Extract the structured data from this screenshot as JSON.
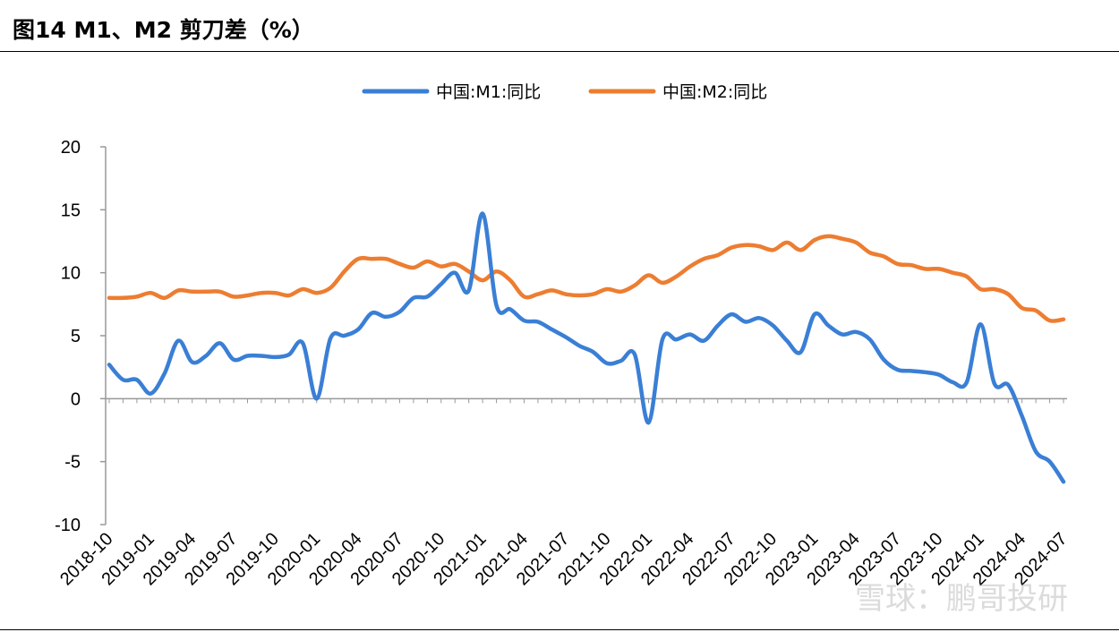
{
  "title": "图14 M1、M2 剪刀差（%）",
  "watermark": "雪球：鹏哥投研",
  "colors": {
    "m1": "#3a7fd5",
    "m2": "#ed7d31"
  },
  "chart_data": {
    "type": "line",
    "title": "图14 M1、M2 剪刀差（%）",
    "legend_position": "top-center",
    "grid": false,
    "ylim": [
      -10,
      20
    ],
    "yticks": [
      -10,
      -5,
      0,
      5,
      10,
      15,
      20
    ],
    "xtick_labels": [
      "2018-10",
      "2019-01",
      "2019-04",
      "2019-07",
      "2019-10",
      "2020-01",
      "2020-04",
      "2020-07",
      "2020-10",
      "2021-01",
      "2021-04",
      "2021-07",
      "2021-10",
      "2022-01",
      "2022-04",
      "2022-07",
      "2022-10",
      "2023-01",
      "2023-04",
      "2023-07",
      "2023-10",
      "2024-01",
      "2024-04",
      "2024-07"
    ],
    "x": [
      "2018-10",
      "2018-11",
      "2018-12",
      "2019-01",
      "2019-02",
      "2019-03",
      "2019-04",
      "2019-05",
      "2019-06",
      "2019-07",
      "2019-08",
      "2019-09",
      "2019-10",
      "2019-11",
      "2019-12",
      "2020-01",
      "2020-02",
      "2020-03",
      "2020-04",
      "2020-05",
      "2020-06",
      "2020-07",
      "2020-08",
      "2020-09",
      "2020-10",
      "2020-11",
      "2020-12",
      "2021-01",
      "2021-02",
      "2021-03",
      "2021-04",
      "2021-05",
      "2021-06",
      "2021-07",
      "2021-08",
      "2021-09",
      "2021-10",
      "2021-11",
      "2021-12",
      "2022-01",
      "2022-02",
      "2022-03",
      "2022-04",
      "2022-05",
      "2022-06",
      "2022-07",
      "2022-08",
      "2022-09",
      "2022-10",
      "2022-11",
      "2022-12",
      "2023-01",
      "2023-02",
      "2023-03",
      "2023-04",
      "2023-05",
      "2023-06",
      "2023-07",
      "2023-08",
      "2023-09",
      "2023-10",
      "2023-11",
      "2023-12",
      "2024-01",
      "2024-02",
      "2024-03",
      "2024-04",
      "2024-05",
      "2024-06",
      "2024-07"
    ],
    "series": [
      {
        "name": "中国:M1:同比",
        "values": [
          2.7,
          1.5,
          1.5,
          0.4,
          2.0,
          4.6,
          2.9,
          3.4,
          4.4,
          3.1,
          3.4,
          3.4,
          3.3,
          3.5,
          4.4,
          0.0,
          4.8,
          5.0,
          5.5,
          6.8,
          6.5,
          6.9,
          8.0,
          8.1,
          9.1,
          10.0,
          8.6,
          14.7,
          7.4,
          7.1,
          6.2,
          6.1,
          5.5,
          4.9,
          4.2,
          3.7,
          2.8,
          3.0,
          3.5,
          -1.9,
          4.7,
          4.7,
          5.1,
          4.6,
          5.8,
          6.7,
          6.1,
          6.4,
          5.8,
          4.6,
          3.7,
          6.7,
          5.8,
          5.1,
          5.3,
          4.7,
          3.1,
          2.3,
          2.2,
          2.1,
          1.9,
          1.3,
          1.3,
          5.9,
          1.2,
          1.1,
          -1.4,
          -4.2,
          -5.0,
          -6.6
        ]
      },
      {
        "name": "中国:M2:同比",
        "values": [
          8.0,
          8.0,
          8.1,
          8.4,
          8.0,
          8.6,
          8.5,
          8.5,
          8.5,
          8.1,
          8.2,
          8.4,
          8.4,
          8.2,
          8.7,
          8.4,
          8.8,
          10.1,
          11.1,
          11.1,
          11.1,
          10.7,
          10.4,
          10.9,
          10.5,
          10.7,
          10.1,
          9.4,
          10.1,
          9.4,
          8.1,
          8.3,
          8.6,
          8.3,
          8.2,
          8.3,
          8.7,
          8.5,
          9.0,
          9.8,
          9.2,
          9.7,
          10.5,
          11.1,
          11.4,
          12.0,
          12.2,
          12.1,
          11.8,
          12.4,
          11.8,
          12.6,
          12.9,
          12.7,
          12.4,
          11.6,
          11.3,
          10.7,
          10.6,
          10.3,
          10.3,
          10.0,
          9.7,
          8.7,
          8.7,
          8.3,
          7.2,
          7.0,
          6.2,
          6.3
        ]
      }
    ]
  }
}
